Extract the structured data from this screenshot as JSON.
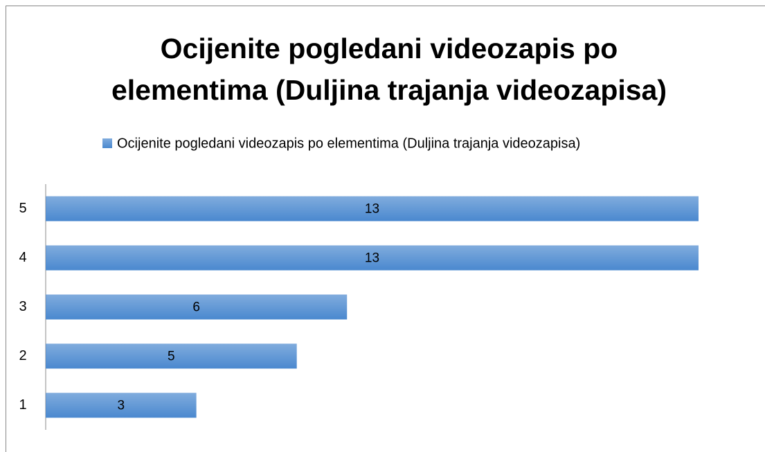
{
  "chart_data": {
    "type": "bar",
    "orientation": "horizontal",
    "title": "Ocijenite pogledani videozapis po elementima (Duljina trajanja videozapisa)",
    "categories": [
      "1",
      "2",
      "3",
      "4",
      "5"
    ],
    "series": [
      {
        "name": "Ocijenite pogledani videozapis po elementima (Duljina trajanja videozapisa)",
        "color": "#4a88cf",
        "values": [
          3,
          5,
          6,
          13,
          13
        ]
      }
    ],
    "legend": "top",
    "grid": false
  }
}
